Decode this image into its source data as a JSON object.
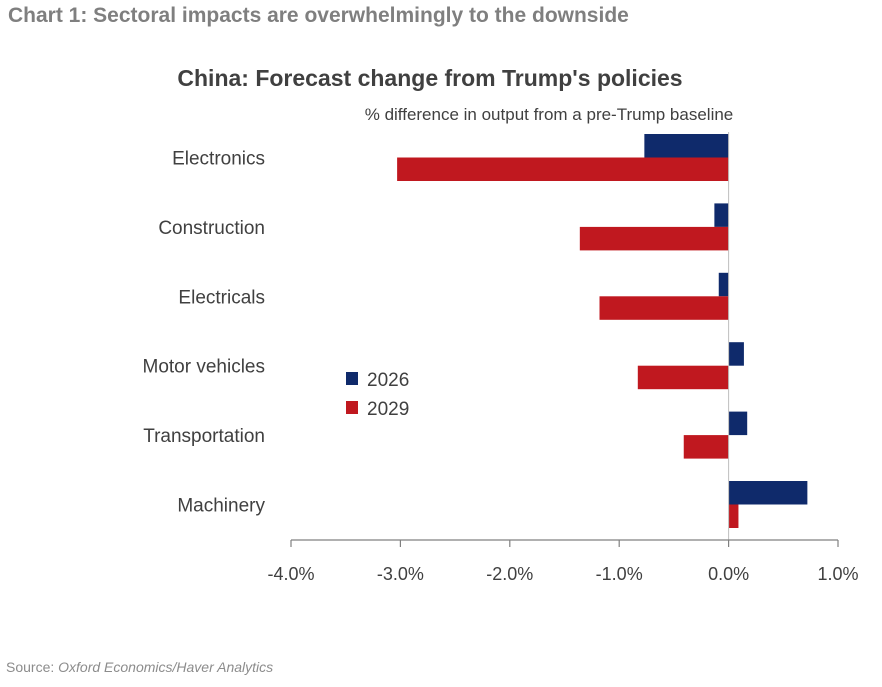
{
  "heading": "Chart 1: Sectoral impacts are overwhelmingly to the downside",
  "source": {
    "label": "Source:",
    "text": "Oxford Economics/Haver Analytics"
  },
  "chart_data": {
    "type": "bar",
    "orientation": "horizontal",
    "title": "China: Forecast change from Trump's policies",
    "subtitle": "% difference in output from a pre-Trump baseline",
    "categories": [
      "Electronics",
      "Construction",
      "Electricals",
      "Motor vehicles",
      "Transportation",
      "Machinery"
    ],
    "series": [
      {
        "name": "2026",
        "color": "#0f2a6b",
        "values": [
          -0.77,
          -0.13,
          -0.09,
          0.14,
          0.17,
          0.72
        ]
      },
      {
        "name": "2029",
        "color": "#c0181f",
        "values": [
          -3.03,
          -1.36,
          -1.18,
          -0.83,
          -0.41,
          0.09
        ]
      }
    ],
    "xlim": [
      -4.0,
      1.0
    ],
    "xticks": [
      -4.0,
      -3.0,
      -2.0,
      -1.0,
      0.0,
      1.0
    ],
    "xtick_labels": [
      "-4.0%",
      "-3.0%",
      "-2.0%",
      "-1.0%",
      "0.0%",
      "1.0%"
    ],
    "grid": false,
    "legend_position": "left-middle"
  }
}
